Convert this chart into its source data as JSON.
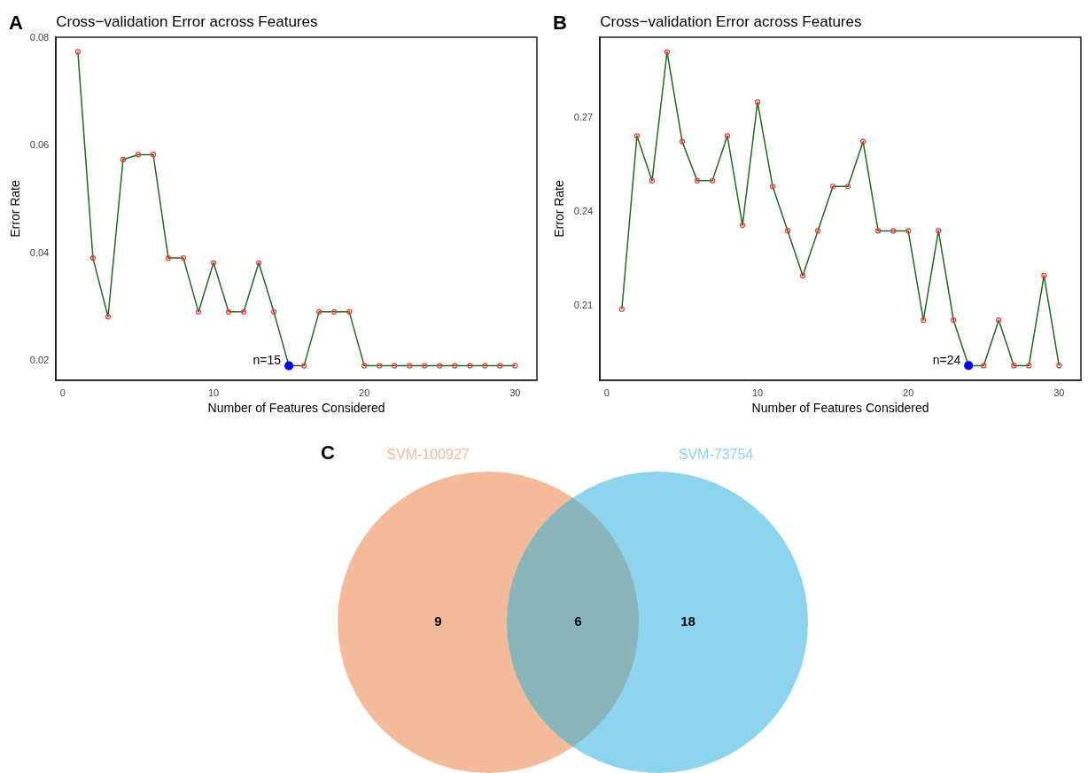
{
  "chart_data": [
    {
      "type": "line",
      "title": "Cross−validation Error across Features",
      "xlabel": "Number of Features Considered",
      "ylabel": "Error Rate",
      "annotations": [
        "A",
        {
          "text": "n=15",
          "x": 15,
          "y": 0.0191
        }
      ],
      "x": [
        1,
        2,
        3,
        4,
        5,
        6,
        7,
        8,
        9,
        10,
        11,
        12,
        13,
        14,
        15,
        16,
        17,
        18,
        19,
        20,
        21,
        22,
        23,
        24,
        25,
        26,
        27,
        28,
        29,
        30
      ],
      "series": [
        {
          "type": "line",
          "color": "#1e6b1e",
          "marker": "none",
          "values": [
            0.0774,
            0.0391,
            0.0282,
            0.0574,
            0.0583,
            0.0583,
            0.0391,
            0.0391,
            0.0291,
            0.0382,
            0.0291,
            0.0291,
            0.0382,
            0.0291,
            0.0191,
            0.0191,
            0.0291,
            0.0291,
            0.0291,
            0.0191,
            0.0191,
            0.0191,
            0.0191,
            0.0191,
            0.0191,
            0.0191,
            0.0191,
            0.0191,
            0.0191,
            0.0191
          ]
        },
        {
          "type": "scatter",
          "color": "#ff3030",
          "marker": "circle",
          "values": [
            0.0774,
            0.0391,
            0.0282,
            0.0574,
            0.0583,
            0.0583,
            0.0391,
            0.0391,
            0.0291,
            0.0382,
            0.0291,
            0.0291,
            0.0382,
            0.0291,
            null,
            0.0191,
            0.0291,
            0.0291,
            0.0291,
            0.0191,
            0.0191,
            0.0191,
            0.0191,
            0.0191,
            0.0191,
            0.0191,
            0.0191,
            0.0191,
            0.0191,
            0.0191
          ]
        },
        {
          "type": "scatter",
          "color": "#0000ff",
          "marker": "circle",
          "x": [
            15
          ],
          "values": [
            0.0191
          ]
        }
      ],
      "xlim": [
        -0.45,
        31.45
      ],
      "xticks": [
        0,
        10,
        20,
        30
      ],
      "ylim": [
        0.0164,
        0.0801
      ],
      "yticks": [
        0.02,
        0.04,
        0.06,
        0.08
      ],
      "grid": false,
      "legend": false
    },
    {
      "type": "line",
      "title": "Cross−validation Error across Features",
      "xlabel": "Number of Features Considered",
      "ylabel": "Error Rate",
      "annotations": [
        "B",
        {
          "text": "n=24",
          "x": 24,
          "y": 0.191
        }
      ],
      "x": [
        1,
        2,
        3,
        4,
        5,
        6,
        7,
        8,
        9,
        10,
        11,
        12,
        13,
        14,
        15,
        16,
        17,
        18,
        19,
        20,
        21,
        22,
        23,
        24,
        25,
        26,
        27,
        28,
        29,
        30
      ],
      "series": [
        {
          "type": "line",
          "color": "#1e6b1e",
          "marker": "none",
          "values": [
            0.209,
            0.2643,
            0.25,
            0.2911,
            0.2625,
            0.25,
            0.25,
            0.2643,
            0.2358,
            0.2751,
            0.2482,
            0.234,
            0.2197,
            0.234,
            0.2482,
            0.2482,
            0.2625,
            0.234,
            0.234,
            0.234,
            0.2055,
            0.234,
            0.2055,
            0.191,
            0.191,
            0.2055,
            0.191,
            0.191,
            0.2197,
            0.191
          ]
        },
        {
          "type": "scatter",
          "color": "#ff3030",
          "marker": "circle",
          "values": [
            0.209,
            0.2643,
            0.25,
            0.2911,
            0.2625,
            0.25,
            0.25,
            0.2643,
            0.2358,
            0.2751,
            0.2482,
            0.234,
            0.2197,
            0.234,
            0.2482,
            0.2482,
            0.2625,
            0.234,
            0.234,
            0.234,
            0.2055,
            0.234,
            0.2055,
            null,
            0.191,
            0.2055,
            0.191,
            0.191,
            0.2197,
            0.191
          ]
        },
        {
          "type": "scatter",
          "color": "#0000ff",
          "marker": "circle",
          "x": [
            24
          ],
          "values": [
            0.191
          ]
        }
      ],
      "xlim": [
        -0.45,
        31.45
      ],
      "xticks": [
        0,
        10,
        20,
        30
      ],
      "ylim": [
        0.1863,
        0.2958
      ],
      "yticks": [
        0.21,
        0.24,
        0.27
      ],
      "grid": false,
      "legend": false
    },
    {
      "type": "other",
      "annotations": [
        "C",
        "SVM-100927",
        "SVM-73754"
      ],
      "categories": [
        null,
        null,
        null
      ],
      "values": [
        9,
        6,
        18
      ],
      "colors": [
        "#f4bb9b",
        "#89b5bb",
        "#8dd5ee"
      ],
      "data_labels": true
    }
  ]
}
